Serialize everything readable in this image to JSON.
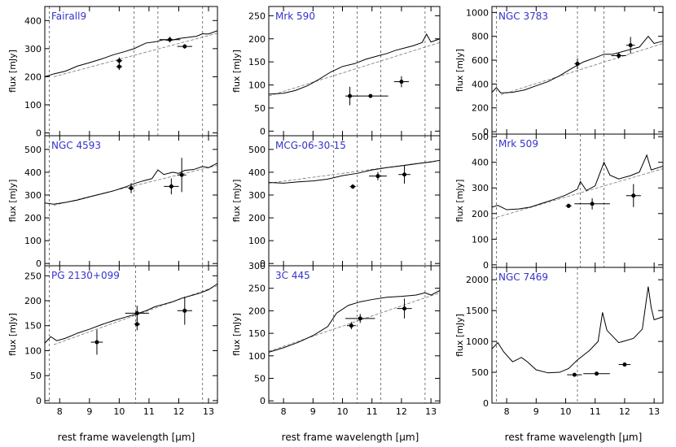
{
  "figure": {
    "xlabel": "rest frame wavelength [μm]",
    "ylabel": "flux [mJy]"
  },
  "colors": {
    "name": "#3333cc",
    "axis": "#000000",
    "dashed": "#555555"
  },
  "chart_data": [
    {
      "type": "line",
      "name": "Fairall9",
      "xlim": [
        7.5,
        13.3
      ],
      "ylim": [
        -10,
        450
      ],
      "yticks": [
        0,
        100,
        200,
        300,
        400
      ],
      "xticks": [
        8,
        9,
        10,
        11,
        12,
        13
      ],
      "vlines": [
        7.65,
        10.5,
        11.3,
        12.8
      ],
      "spectrum": [
        [
          7.5,
          200
        ],
        [
          7.8,
          210
        ],
        [
          8.2,
          220
        ],
        [
          8.6,
          238
        ],
        [
          9.0,
          250
        ],
        [
          9.4,
          263
        ],
        [
          9.8,
          278
        ],
        [
          10.2,
          290
        ],
        [
          10.5,
          300
        ],
        [
          10.9,
          320
        ],
        [
          11.2,
          324
        ],
        [
          11.5,
          332
        ],
        [
          11.7,
          328
        ],
        [
          12.0,
          336
        ],
        [
          12.3,
          340
        ],
        [
          12.6,
          344
        ],
        [
          12.8,
          353
        ],
        [
          13.0,
          352
        ],
        [
          13.3,
          364
        ]
      ],
      "continuum": [
        [
          7.8,
          200
        ],
        [
          13.3,
          355
        ]
      ],
      "points": [
        {
          "x": 10.0,
          "y": 257,
          "xerr": 0.1,
          "yerr": 12
        },
        {
          "x": 10.0,
          "y": 236,
          "xerr": 0.1,
          "yerr": 12
        },
        {
          "x": 11.7,
          "y": 332,
          "xerr": 0.35,
          "yerr": 10
        },
        {
          "x": 12.2,
          "y": 308,
          "xerr": 0.25,
          "yerr": 8
        }
      ]
    },
    {
      "type": "line",
      "name": "NGC 4593",
      "xlim": [
        7.5,
        13.3
      ],
      "ylim": [
        -10,
        560
      ],
      "yticks": [
        0,
        100,
        200,
        300,
        400,
        500
      ],
      "xticks": [
        8,
        9,
        10,
        11,
        12,
        13
      ],
      "vlines": [
        7.65,
        10.5,
        12.8
      ],
      "spectrum": [
        [
          7.5,
          265
        ],
        [
          7.8,
          260
        ],
        [
          8.2,
          268
        ],
        [
          8.6,
          278
        ],
        [
          9.0,
          292
        ],
        [
          9.4,
          305
        ],
        [
          9.8,
          318
        ],
        [
          10.2,
          335
        ],
        [
          10.5,
          350
        ],
        [
          10.8,
          362
        ],
        [
          11.1,
          372
        ],
        [
          11.3,
          410
        ],
        [
          11.5,
          390
        ],
        [
          11.8,
          400
        ],
        [
          12.0,
          395
        ],
        [
          12.2,
          408
        ],
        [
          12.5,
          412
        ],
        [
          12.8,
          425
        ],
        [
          13.0,
          420
        ],
        [
          13.3,
          440
        ]
      ],
      "continuum": [
        [
          7.8,
          255
        ],
        [
          13.3,
          430
        ]
      ],
      "points": [
        {
          "x": 10.4,
          "y": 330,
          "xerr": 0.1,
          "yerr": 22
        },
        {
          "x": 11.75,
          "y": 338,
          "xerr": 0.25,
          "yerr": 35
        },
        {
          "x": 12.1,
          "y": 388,
          "xerr": 0.15,
          "yerr": 75
        }
      ]
    },
    {
      "type": "line",
      "name": "PG 2130+099",
      "xlim": [
        7.5,
        13.3
      ],
      "ylim": [
        -5,
        270
      ],
      "yticks": [
        0,
        50,
        100,
        150,
        200,
        250
      ],
      "xticks": [
        8,
        9,
        10,
        11,
        12,
        13
      ],
      "vlines": [
        7.65,
        10.55,
        12.8
      ],
      "spectrum": [
        [
          7.5,
          115
        ],
        [
          7.7,
          128
        ],
        [
          7.9,
          120
        ],
        [
          8.2,
          125
        ],
        [
          8.6,
          135
        ],
        [
          9.0,
          143
        ],
        [
          9.4,
          152
        ],
        [
          9.8,
          160
        ],
        [
          10.2,
          167
        ],
        [
          10.5,
          172
        ],
        [
          10.9,
          180
        ],
        [
          11.2,
          188
        ],
        [
          11.5,
          193
        ],
        [
          11.8,
          198
        ],
        [
          12.1,
          205
        ],
        [
          12.4,
          210
        ],
        [
          12.7,
          215
        ],
        [
          13.0,
          222
        ],
        [
          13.3,
          234
        ]
      ],
      "continuum": [
        [
          7.8,
          112
        ],
        [
          13.3,
          230
        ]
      ],
      "points": [
        {
          "x": 9.25,
          "y": 117,
          "xerr": 0.2,
          "yerr": 25
        },
        {
          "x": 10.6,
          "y": 175,
          "xerr": 0.4,
          "yerr": 15
        },
        {
          "x": 10.6,
          "y": 153,
          "xerr": 0.1,
          "yerr": 12
        },
        {
          "x": 12.2,
          "y": 180,
          "xerr": 0.25,
          "yerr": 28
        }
      ]
    },
    {
      "type": "line",
      "name": "Mrk 590",
      "xlim": [
        7.5,
        13.3
      ],
      "ylim": [
        -10,
        270
      ],
      "yticks": [
        0,
        50,
        100,
        150,
        200,
        250
      ],
      "xticks": [
        8,
        9,
        10,
        11,
        12,
        13
      ],
      "vlines": [
        9.7,
        10.5,
        11.3,
        12.8
      ],
      "spectrum": [
        [
          7.5,
          80
        ],
        [
          8.0,
          82
        ],
        [
          8.4,
          88
        ],
        [
          8.8,
          98
        ],
        [
          9.2,
          112
        ],
        [
          9.6,
          128
        ],
        [
          10.0,
          140
        ],
        [
          10.4,
          146
        ],
        [
          10.8,
          156
        ],
        [
          11.2,
          163
        ],
        [
          11.5,
          168
        ],
        [
          11.8,
          175
        ],
        [
          12.1,
          180
        ],
        [
          12.4,
          185
        ],
        [
          12.7,
          192
        ],
        [
          12.85,
          210
        ],
        [
          13.0,
          193
        ],
        [
          13.3,
          200
        ]
      ],
      "continuum": [
        [
          7.5,
          76
        ],
        [
          13.3,
          192
        ]
      ],
      "points": [
        {
          "x": 10.25,
          "y": 76,
          "xerr": 0.15,
          "yerr": 20
        },
        {
          "x": 10.95,
          "y": 76,
          "xerr": 0.6,
          "yerr": 0
        },
        {
          "x": 12.0,
          "y": 107,
          "xerr": 0.25,
          "yerr": 12
        }
      ]
    },
    {
      "type": "line",
      "name": "MCG-06-30-15",
      "xlim": [
        7.5,
        13.3
      ],
      "ylim": [
        -10,
        560
      ],
      "yticks": [
        0,
        100,
        200,
        300,
        400,
        500
      ],
      "xticks": [
        8,
        9,
        10,
        11,
        12,
        13
      ],
      "vlines": [
        9.7,
        10.5,
        11.3,
        12.8
      ],
      "spectrum": [
        [
          7.5,
          355
        ],
        [
          8.0,
          352
        ],
        [
          8.5,
          358
        ],
        [
          9.0,
          362
        ],
        [
          9.5,
          370
        ],
        [
          10.0,
          385
        ],
        [
          10.5,
          395
        ],
        [
          11.0,
          410
        ],
        [
          11.5,
          420
        ],
        [
          12.0,
          428
        ],
        [
          12.5,
          437
        ],
        [
          13.0,
          445
        ],
        [
          13.3,
          452
        ]
      ],
      "continuum": [
        [
          7.5,
          352
        ],
        [
          13.3,
          452
        ]
      ],
      "points": [
        {
          "x": 10.35,
          "y": 337,
          "xerr": 0.1,
          "yerr": 10
        },
        {
          "x": 11.2,
          "y": 383,
          "xerr": 0.3,
          "yerr": 18
        },
        {
          "x": 12.1,
          "y": 390,
          "xerr": 0.2,
          "yerr": 40
        }
      ]
    },
    {
      "type": "line",
      "name": "3C 445",
      "xlim": [
        7.5,
        13.3
      ],
      "ylim": [
        -5,
        300
      ],
      "yticks": [
        0,
        50,
        100,
        150,
        200,
        250,
        300
      ],
      "xticks": [
        8,
        9,
        10,
        11,
        12,
        13
      ],
      "vlines": [
        9.7,
        10.5,
        11.3,
        12.8
      ],
      "spectrum": [
        [
          7.5,
          108
        ],
        [
          8.0,
          118
        ],
        [
          8.5,
          130
        ],
        [
          9.0,
          145
        ],
        [
          9.5,
          165
        ],
        [
          9.8,
          195
        ],
        [
          10.2,
          212
        ],
        [
          10.6,
          220
        ],
        [
          11.0,
          225
        ],
        [
          11.5,
          230
        ],
        [
          12.0,
          232
        ],
        [
          12.5,
          235
        ],
        [
          12.8,
          240
        ],
        [
          13.0,
          235
        ],
        [
          13.3,
          245
        ]
      ],
      "continuum": [
        [
          7.5,
          110
        ],
        [
          13.3,
          240
        ]
      ],
      "points": [
        {
          "x": 10.3,
          "y": 167,
          "xerr": 0.15,
          "yerr": 8
        },
        {
          "x": 10.6,
          "y": 183,
          "xerr": 0.5,
          "yerr": 10
        },
        {
          "x": 12.1,
          "y": 205,
          "xerr": 0.25,
          "yerr": 22
        }
      ]
    },
    {
      "type": "line",
      "name": "NGC 3783",
      "xlim": [
        7.5,
        13.3
      ],
      "ylim": [
        -20,
        1050
      ],
      "yticks": [
        0,
        200,
        400,
        600,
        800,
        1000
      ],
      "xticks": [
        8,
        9,
        10,
        11,
        12,
        13
      ],
      "vlines": [
        7.65,
        10.4,
        11.3
      ],
      "spectrum": [
        [
          7.5,
          330
        ],
        [
          7.65,
          370
        ],
        [
          7.8,
          325
        ],
        [
          8.2,
          330
        ],
        [
          8.6,
          350
        ],
        [
          9.0,
          385
        ],
        [
          9.4,
          420
        ],
        [
          9.8,
          470
        ],
        [
          10.2,
          530
        ],
        [
          10.6,
          585
        ],
        [
          11.0,
          620
        ],
        [
          11.3,
          650
        ],
        [
          11.6,
          650
        ],
        [
          11.9,
          670
        ],
        [
          12.2,
          690
        ],
        [
          12.5,
          710
        ],
        [
          12.8,
          800
        ],
        [
          13.0,
          740
        ],
        [
          13.3,
          760
        ]
      ],
      "continuum": [
        [
          7.8,
          310
        ],
        [
          13.3,
          740
        ]
      ],
      "points": [
        {
          "x": 10.4,
          "y": 570,
          "xerr": 0.1,
          "yerr": 45
        },
        {
          "x": 11.8,
          "y": 638,
          "xerr": 0.25,
          "yerr": 25
        },
        {
          "x": 12.2,
          "y": 725,
          "xerr": 0.15,
          "yerr": 70
        }
      ]
    },
    {
      "type": "line",
      "name": "Mrk 509",
      "xlim": [
        7.5,
        13.3
      ],
      "ylim": [
        -10,
        510
      ],
      "yticks": [
        0,
        100,
        200,
        300,
        400,
        500
      ],
      "xticks": [
        8,
        9,
        10,
        11,
        12,
        13
      ],
      "vlines": [
        7.65,
        10.5,
        11.3
      ],
      "spectrum": [
        [
          7.5,
          225
        ],
        [
          7.7,
          232
        ],
        [
          8.0,
          215
        ],
        [
          8.4,
          218
        ],
        [
          8.8,
          225
        ],
        [
          9.2,
          240
        ],
        [
          9.6,
          255
        ],
        [
          10.0,
          272
        ],
        [
          10.4,
          295
        ],
        [
          10.5,
          325
        ],
        [
          10.7,
          290
        ],
        [
          11.0,
          308
        ],
        [
          11.3,
          400
        ],
        [
          11.5,
          350
        ],
        [
          11.8,
          335
        ],
        [
          12.2,
          348
        ],
        [
          12.5,
          362
        ],
        [
          12.75,
          428
        ],
        [
          12.9,
          370
        ],
        [
          13.3,
          385
        ]
      ],
      "continuum": [
        [
          7.5,
          180
        ],
        [
          13.3,
          375
        ]
      ],
      "points": [
        {
          "x": 10.1,
          "y": 230,
          "xerr": 0.1,
          "yerr": 8
        },
        {
          "x": 10.9,
          "y": 238,
          "xerr": 0.6,
          "yerr": 22
        },
        {
          "x": 12.3,
          "y": 270,
          "xerr": 0.25,
          "yerr": 45
        }
      ]
    },
    {
      "type": "line",
      "name": "NGC 7469",
      "xlim": [
        7.5,
        13.3
      ],
      "ylim": [
        0,
        2200
      ],
      "yticks": [
        0,
        500,
        1000,
        1500,
        2000
      ],
      "xticks": [
        8,
        9,
        10,
        11,
        12,
        13
      ],
      "vlines": [
        7.65,
        10.4
      ],
      "spectrum": [
        [
          7.5,
          880
        ],
        [
          7.7,
          980
        ],
        [
          7.9,
          830
        ],
        [
          8.2,
          670
        ],
        [
          8.5,
          740
        ],
        [
          8.7,
          670
        ],
        [
          9.0,
          540
        ],
        [
          9.4,
          490
        ],
        [
          9.8,
          500
        ],
        [
          10.1,
          560
        ],
        [
          10.4,
          700
        ],
        [
          10.8,
          850
        ],
        [
          11.1,
          1000
        ],
        [
          11.25,
          1470
        ],
        [
          11.4,
          1180
        ],
        [
          11.8,
          980
        ],
        [
          12.3,
          1050
        ],
        [
          12.6,
          1200
        ],
        [
          12.8,
          1890
        ],
        [
          12.9,
          1550
        ],
        [
          13.0,
          1350
        ],
        [
          13.3,
          1400
        ]
      ],
      "continuum": [],
      "points": [
        {
          "x": 10.3,
          "y": 460,
          "xerr": 0.25,
          "yerr": 0
        },
        {
          "x": 11.05,
          "y": 478,
          "xerr": 0.45,
          "yerr": 25
        },
        {
          "x": 12.0,
          "y": 625,
          "xerr": 0.2,
          "yerr": 30
        }
      ]
    }
  ]
}
